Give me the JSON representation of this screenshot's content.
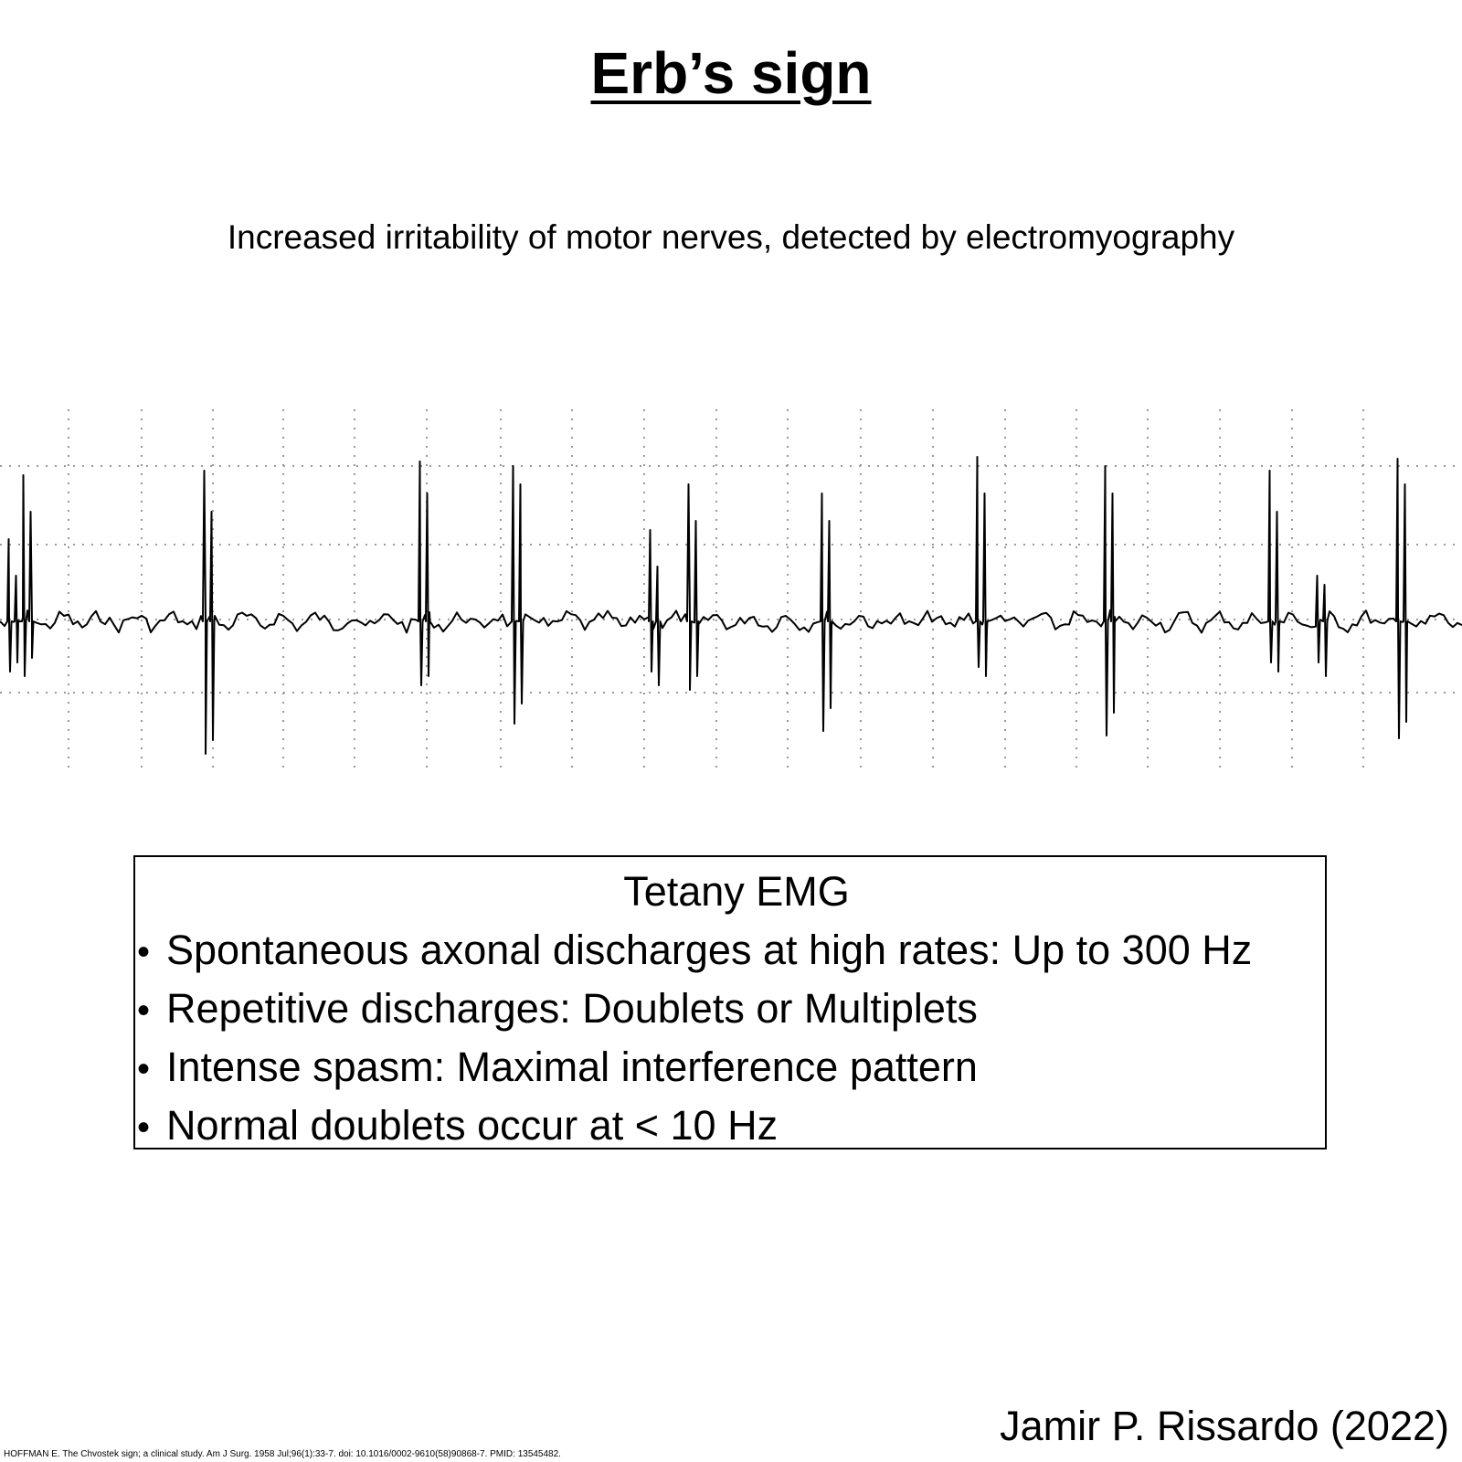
{
  "slide": {
    "title": "Erb’s sign",
    "subtitle": "Increased irritability of motor nerves, detected by electromyography"
  },
  "emg_figure": {
    "trace_color": "#000000",
    "grid_color": "#9a9a9a"
  },
  "info_box": {
    "title": "Tetany EMG",
    "bullets": [
      "Spontaneous axonal discharges at high rates: Up to 300 Hz",
      "Repetitive discharges: Doublets or Multiplets",
      "Intense spasm: Maximal interference pattern",
      "Normal doublets occur at < 10 Hz"
    ]
  },
  "footer": {
    "author": "Jamir P. Rissardo (2022)",
    "reference": "HOFFMAN E. The Chvostek sign; a clinical study. Am J Surg. 1958 Jul;96(1):33-7. doi: 10.1016/0002-9610(58)90868-7. PMID: 13545482."
  }
}
